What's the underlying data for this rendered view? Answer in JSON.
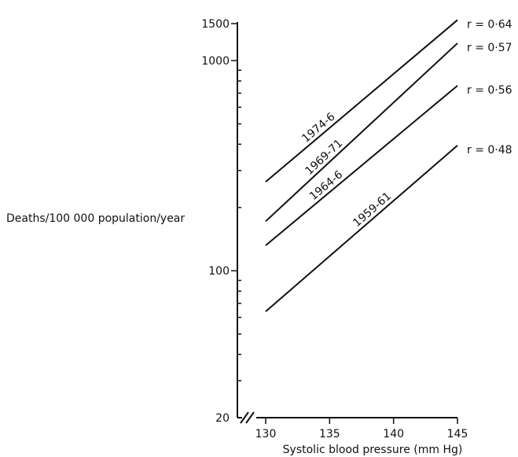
{
  "chart_data": {
    "type": "line",
    "title": "",
    "xlabel": "Systolic blood pressure (mm Hg)",
    "ylabel": "Deaths/100 000 population/year",
    "x_ticks": [
      130,
      135,
      140,
      145
    ],
    "x_tick_labels": [
      "130",
      "135",
      "140",
      "145"
    ],
    "xlim": [
      130,
      145
    ],
    "y_scale": "log",
    "ylim": [
      20,
      1500
    ],
    "y_labeled_ticks": [
      20,
      100,
      1000,
      1500
    ],
    "y_tick_labels": [
      "20",
      "100",
      "1000",
      "1500"
    ],
    "y_minor_ticks": [
      30,
      40,
      50,
      60,
      70,
      80,
      90,
      200,
      300,
      400,
      500,
      600,
      700,
      800,
      900
    ],
    "x_axis_break": true,
    "grid": false,
    "legend": "none",
    "series": [
      {
        "name": "1974-6",
        "annotation": "r = 0·64",
        "x": [
          130,
          145
        ],
        "y": [
          265,
          1560
        ]
      },
      {
        "name": "1969-71",
        "annotation": "r = 0·57",
        "x": [
          130,
          145
        ],
        "y": [
          172,
          1210
        ]
      },
      {
        "name": "1964-6",
        "annotation": "r = 0·56",
        "x": [
          130,
          145
        ],
        "y": [
          132,
          760
        ]
      },
      {
        "name": "1959-61",
        "annotation": "r = 0·48",
        "x": [
          130,
          145
        ],
        "y": [
          64,
          395
        ]
      }
    ]
  },
  "colors": {
    "ink": "#111111",
    "background": "#ffffff"
  }
}
